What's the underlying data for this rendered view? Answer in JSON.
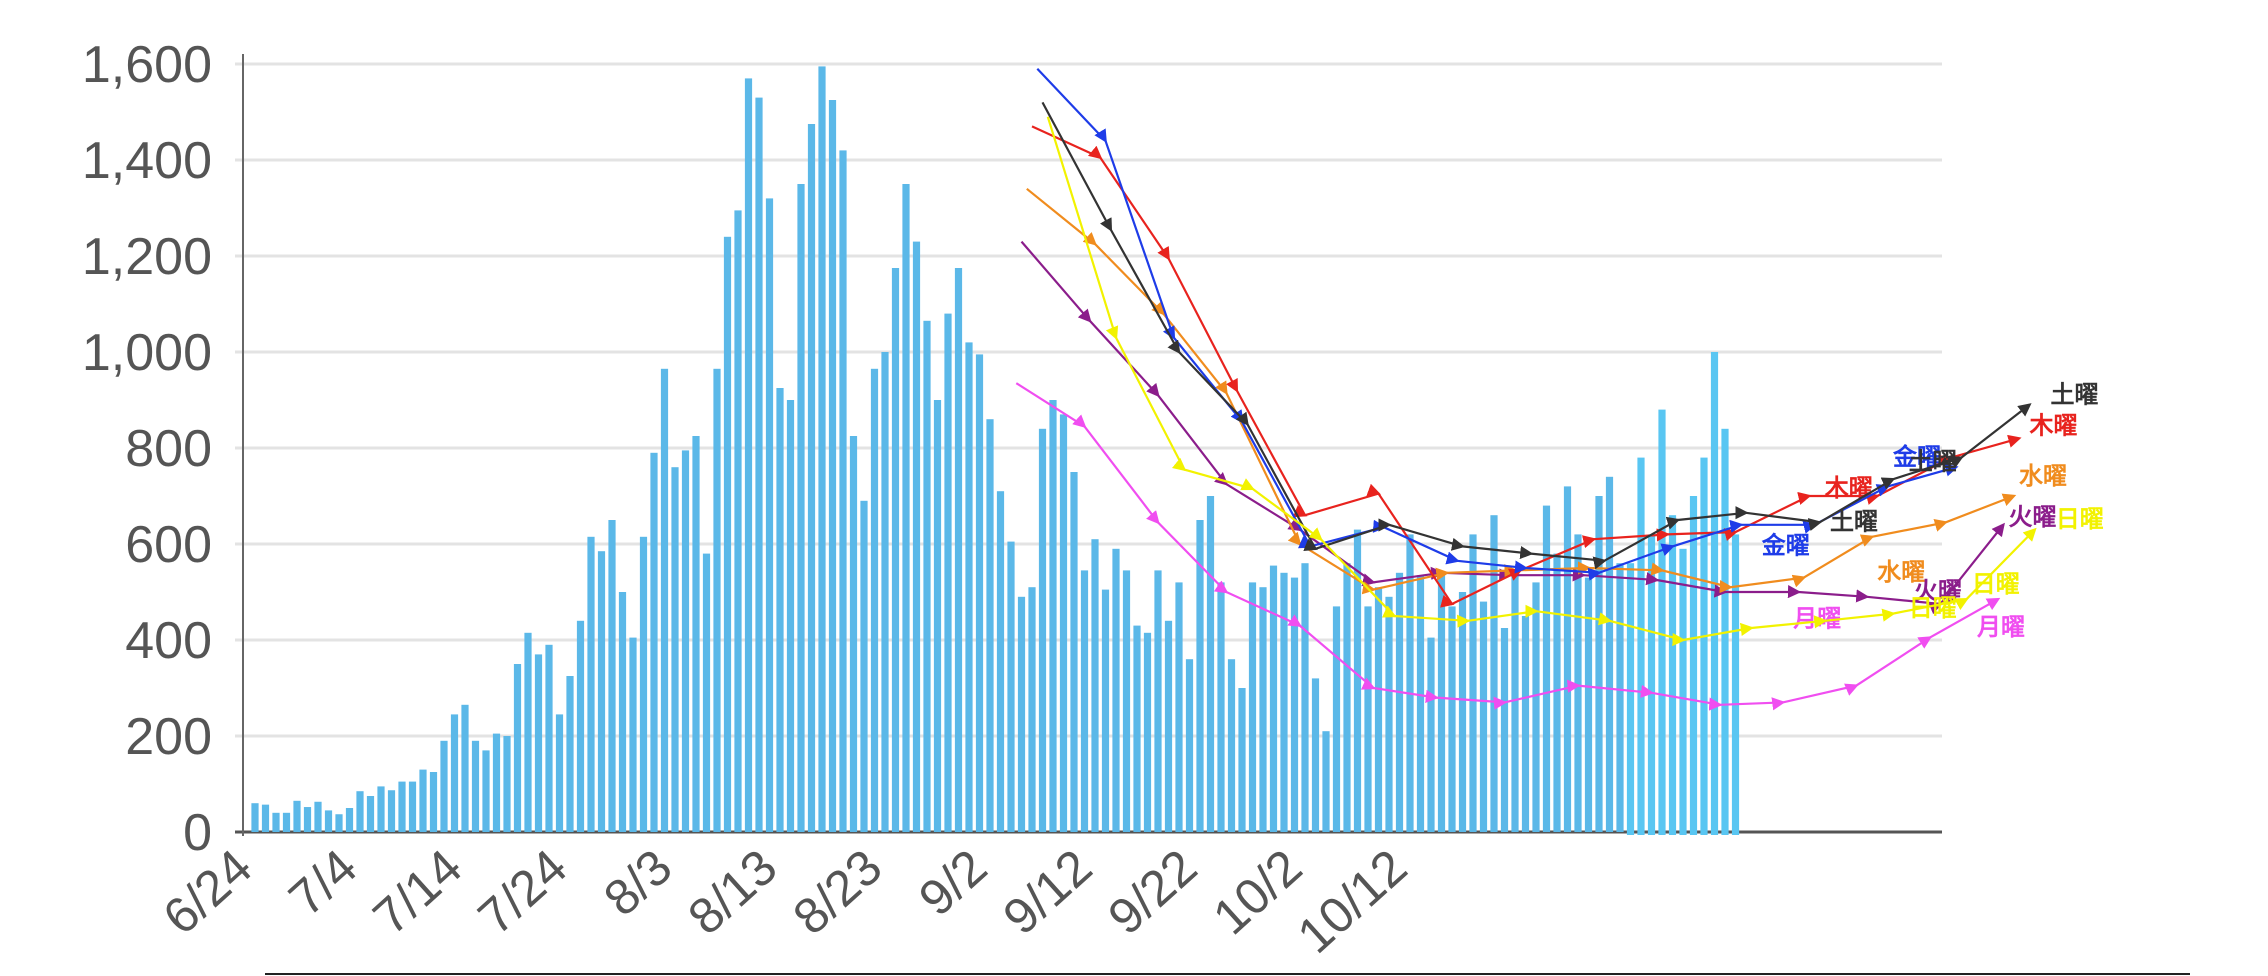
{
  "chart_data": {
    "type": "bar",
    "y_axis": {
      "min": 0,
      "max": 1600,
      "ticks": [
        0,
        200,
        400,
        600,
        800,
        1000,
        1200,
        1400,
        1600
      ],
      "tick_labels": [
        "0",
        "200",
        "400",
        "600",
        "800",
        "1,000",
        "1,200",
        "1,400",
        "1,600"
      ]
    },
    "x_tick_labels": [
      {
        "label": "6/24",
        "day": 0
      },
      {
        "label": "7/4",
        "day": 10
      },
      {
        "label": "7/14",
        "day": 20
      },
      {
        "label": "7/24",
        "day": 30
      },
      {
        "label": "8/3",
        "day": 40
      },
      {
        "label": "8/13",
        "day": 50
      },
      {
        "label": "8/23",
        "day": 60
      },
      {
        "label": "9/2",
        "day": 70
      },
      {
        "label": "9/12",
        "day": 80
      },
      {
        "label": "9/22",
        "day": 90
      },
      {
        "label": "10/2",
        "day": 100
      },
      {
        "label": "10/12",
        "day": 110
      }
    ],
    "colors": {
      "bar": "#5bb8e8",
      "bar_projected": "#59c6f2",
      "grid": "#e3e3e3",
      "axis": "#555555"
    },
    "daily_values": [
      60,
      57,
      40,
      40,
      65,
      52,
      63,
      45,
      37,
      50,
      85,
      75,
      95,
      87,
      105,
      105,
      130,
      125,
      190,
      245,
      265,
      190,
      170,
      205,
      200,
      350,
      415,
      370,
      390,
      245,
      325,
      440,
      615,
      585,
      650,
      500,
      405,
      615,
      790,
      965,
      760,
      795,
      825,
      580,
      965,
      1240,
      1295,
      1570,
      1530,
      1320,
      925,
      900,
      1350,
      1475,
      1595,
      1525,
      1420,
      825,
      690,
      965,
      1000,
      1175,
      1350,
      1230,
      1065,
      900,
      1080,
      1175,
      1020,
      995,
      860,
      710,
      605,
      490,
      510,
      840,
      900,
      870,
      750,
      545,
      610,
      505,
      590,
      545,
      430,
      415,
      545,
      440,
      520,
      360,
      650,
      700,
      520,
      360,
      300,
      520,
      510,
      555,
      540,
      530,
      560,
      320,
      210,
      470,
      560,
      630,
      470,
      510,
      490,
      540,
      620,
      535,
      405,
      540,
      470,
      500,
      620,
      480,
      660,
      425,
      540,
      450,
      520,
      680,
      580,
      720,
      620,
      530,
      700,
      740,
      560,
      560,
      780,
      620,
      880,
      660,
      590,
      700,
      780,
      1000,
      840,
      620
    ],
    "projected_from_day": 131,
    "weekday_series": [
      {
        "name": "月曜",
        "color": "#f04ef0",
        "label_color": "#f04ef0",
        "points": [
          [
            72.5,
            935
          ],
          [
            79,
            845
          ],
          [
            86,
            645
          ],
          [
            92.5,
            500
          ],
          [
            99.5,
            430
          ],
          [
            106.5,
            300
          ],
          [
            112.5,
            280
          ],
          [
            119,
            270
          ],
          [
            126,
            305
          ],
          [
            133,
            290
          ],
          [
            139.5,
            265
          ],
          [
            145.5,
            270
          ],
          [
            152.5,
            305
          ],
          [
            159.5,
            405
          ],
          [
            166,
            485
          ]
        ],
        "labels": [
          [
            146.5,
            428
          ],
          [
            164,
            410
          ]
        ]
      },
      {
        "name": "火曜",
        "color": "#8b1d8b",
        "label_color": "#8b1d8b",
        "points": [
          [
            73,
            1230
          ],
          [
            79.5,
            1065
          ],
          [
            86,
            910
          ],
          [
            92.5,
            725
          ],
          [
            99.5,
            630
          ],
          [
            106.5,
            520
          ],
          [
            113,
            540
          ],
          [
            119.5,
            535
          ],
          [
            126.5,
            535
          ],
          [
            133.5,
            525
          ],
          [
            140,
            500
          ],
          [
            147,
            500
          ],
          [
            153.5,
            490
          ],
          [
            160.5,
            475
          ],
          [
            166.5,
            640
          ]
        ],
        "labels": [
          [
            158,
            485
          ],
          [
            167,
            640
          ]
        ]
      },
      {
        "name": "水曜",
        "color": "#f08c1e",
        "label_color": "#f08c1e",
        "points": [
          [
            73.5,
            1340
          ],
          [
            80,
            1225
          ],
          [
            86.5,
            1080
          ],
          [
            92.5,
            915
          ],
          [
            99.5,
            600
          ],
          [
            106.5,
            505
          ],
          [
            113.5,
            540
          ],
          [
            120,
            545
          ],
          [
            127,
            550
          ],
          [
            134,
            545
          ],
          [
            140.5,
            510
          ],
          [
            147.5,
            530
          ],
          [
            154,
            615
          ],
          [
            161,
            645
          ],
          [
            167.5,
            700
          ]
        ],
        "labels": [
          [
            154.5,
            525
          ],
          [
            168,
            725
          ]
        ]
      },
      {
        "name": "木曜",
        "color": "#e8231e",
        "label_color": "#e8231e",
        "points": [
          [
            74,
            1470
          ],
          [
            80.5,
            1405
          ],
          [
            87,
            1195
          ],
          [
            93.5,
            920
          ],
          [
            100,
            660
          ],
          [
            107,
            705
          ],
          [
            114,
            475
          ],
          [
            120.5,
            545
          ],
          [
            127.5,
            610
          ],
          [
            134.5,
            620
          ],
          [
            141,
            625
          ],
          [
            148,
            700
          ],
          [
            154.5,
            700
          ],
          [
            161.5,
            780
          ],
          [
            168,
            820
          ]
        ],
        "labels": [
          [
            149.5,
            700
          ],
          [
            169,
            830
          ]
        ]
      },
      {
        "name": "金曜",
        "color": "#1e3ce8",
        "label_color": "#1e3ce8",
        "points": [
          [
            74.5,
            1590
          ],
          [
            81,
            1440
          ],
          [
            87.5,
            1030
          ],
          [
            94,
            855
          ],
          [
            100.5,
            595
          ],
          [
            107.5,
            635
          ],
          [
            114.5,
            565
          ],
          [
            121,
            550
          ],
          [
            128,
            540
          ],
          [
            135,
            595
          ],
          [
            141.5,
            640
          ],
          [
            148.5,
            640
          ],
          [
            155.5,
            720
          ],
          [
            162,
            760
          ]
        ],
        "labels": [
          [
            143.5,
            580
          ],
          [
            156,
            765
          ]
        ]
      },
      {
        "name": "土曜",
        "color": "#333333",
        "label_color": "#333333",
        "points": [
          [
            75,
            1520
          ],
          [
            81.5,
            1255
          ],
          [
            88,
            1000
          ],
          [
            94.5,
            850
          ],
          [
            101,
            590
          ],
          [
            108,
            640
          ],
          [
            115,
            595
          ],
          [
            121.5,
            580
          ],
          [
            128.5,
            565
          ],
          [
            135.5,
            650
          ],
          [
            142,
            665
          ],
          [
            149,
            645
          ],
          [
            156,
            735
          ],
          [
            162.5,
            780
          ],
          [
            169,
            890
          ]
        ],
        "labels": [
          [
            150,
            630
          ],
          [
            157.5,
            755
          ],
          [
            171,
            895
          ]
        ]
      },
      {
        "name": "日曜",
        "color": "#f2f200",
        "label_color": "#f2f200",
        "points": [
          [
            75.5,
            1490
          ],
          [
            82,
            1030
          ],
          [
            88.5,
            755
          ],
          [
            95,
            715
          ],
          [
            101.5,
            610
          ],
          [
            108.5,
            450
          ],
          [
            115.5,
            440
          ],
          [
            122,
            460
          ],
          [
            129,
            440
          ],
          [
            136,
            400
          ],
          [
            142.5,
            425
          ],
          [
            149.5,
            440
          ],
          [
            156,
            455
          ],
          [
            163,
            485
          ],
          [
            169.5,
            630
          ]
        ],
        "labels": [
          [
            157.5,
            450
          ],
          [
            163.5,
            500
          ],
          [
            171.5,
            635
          ]
        ]
      }
    ]
  }
}
